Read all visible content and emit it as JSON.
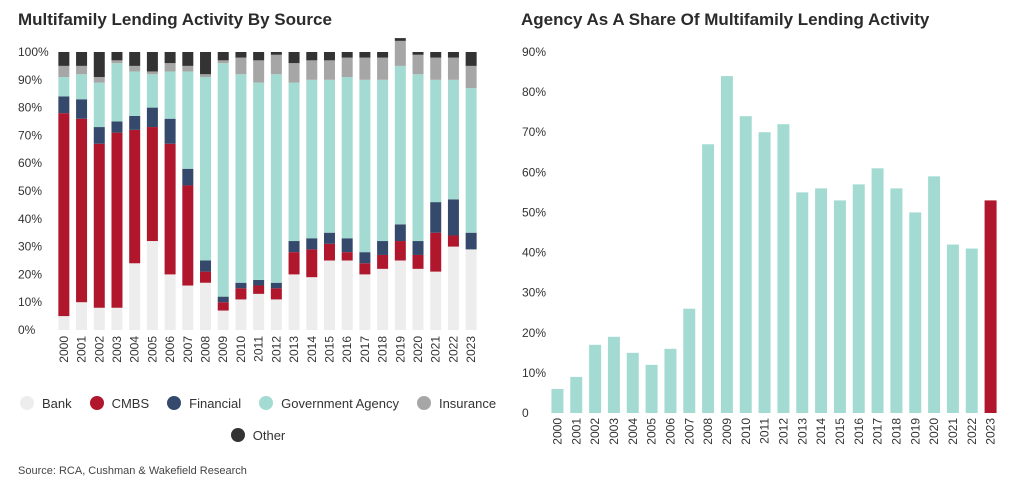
{
  "left_title": "Multifamily Lending Activity By Source",
  "right_title": "Agency As A Share Of Multifamily Lending Activity",
  "source": "Source: RCA, Cushman & Wakefield Research",
  "colors": {
    "bank": "#ededed",
    "cmbs": "#b0162c",
    "financial": "#34496b",
    "agency": "#a3dbd2",
    "insurance": "#a6a6a6",
    "other": "#333333",
    "highlight": "#b0162c"
  },
  "chart_data": [
    {
      "type": "bar",
      "stacked": true,
      "title": "Multifamily Lending Activity By Source",
      "categories": [
        "2000",
        "2001",
        "2002",
        "2003",
        "2004",
        "2005",
        "2006",
        "2007",
        "2008",
        "2009",
        "2010",
        "2011",
        "2012",
        "2013",
        "2014",
        "2015",
        "2016",
        "2017",
        "2018",
        "2019",
        "2020",
        "2021",
        "2022",
        "2023"
      ],
      "ylim": [
        0,
        100
      ],
      "yticks": [
        "0%",
        "10%",
        "20%",
        "30%",
        "40%",
        "50%",
        "60%",
        "70%",
        "80%",
        "90%",
        "100%"
      ],
      "legend_position": "bottom",
      "series": [
        {
          "name": "Bank",
          "values": [
            5,
            10,
            8,
            8,
            24,
            32,
            20,
            16,
            17,
            7,
            11,
            13,
            11,
            20,
            19,
            25,
            25,
            20,
            22,
            25,
            22,
            21,
            30,
            29
          ]
        },
        {
          "name": "CMBS",
          "values": [
            73,
            66,
            59,
            63,
            48,
            41,
            47,
            36,
            4,
            3,
            4,
            3,
            4,
            8,
            10,
            6,
            3,
            4,
            5,
            7,
            5,
            14,
            4,
            0
          ]
        },
        {
          "name": "Financial",
          "values": [
            6,
            7,
            6,
            4,
            5,
            7,
            9,
            6,
            4,
            2,
            2,
            2,
            2,
            4,
            4,
            4,
            5,
            4,
            5,
            6,
            5,
            11,
            13,
            6
          ]
        },
        {
          "name": "Government Agency",
          "values": [
            7,
            9,
            16,
            21,
            16,
            12,
            17,
            35,
            66,
            84,
            75,
            71,
            75,
            57,
            57,
            55,
            58,
            62,
            58,
            57,
            60,
            44,
            43,
            52
          ]
        },
        {
          "name": "Insurance",
          "values": [
            4,
            3,
            2,
            1,
            2,
            1,
            3,
            2,
            1,
            1,
            6,
            8,
            7,
            7,
            7,
            7,
            7,
            8,
            8,
            9,
            7,
            8,
            8,
            8
          ]
        },
        {
          "name": "Other",
          "values": [
            5,
            5,
            9,
            3,
            5,
            7,
            4,
            5,
            8,
            3,
            2,
            3,
            1,
            4,
            3,
            3,
            2,
            2,
            2,
            1,
            1,
            2,
            2,
            5
          ]
        }
      ]
    },
    {
      "type": "bar",
      "title": "Agency As A Share Of Multifamily Lending Activity",
      "categories": [
        "2000",
        "2001",
        "2002",
        "2003",
        "2004",
        "2005",
        "2006",
        "2007",
        "2008",
        "2009",
        "2010",
        "2011",
        "2012",
        "2013",
        "2014",
        "2015",
        "2016",
        "2017",
        "2018",
        "2019",
        "2020",
        "2021",
        "2022",
        "2023"
      ],
      "values": [
        6,
        9,
        17,
        19,
        15,
        12,
        16,
        26,
        67,
        84,
        74,
        70,
        72,
        55,
        56,
        53,
        57,
        61,
        56,
        50,
        59,
        42,
        41,
        53
      ],
      "ylim": [
        0,
        90
      ],
      "yticks": [
        "0",
        "10%",
        "20%",
        "30%",
        "40%",
        "50%",
        "60%",
        "70%",
        "80%",
        "90%"
      ],
      "highlight_index": 23
    }
  ]
}
